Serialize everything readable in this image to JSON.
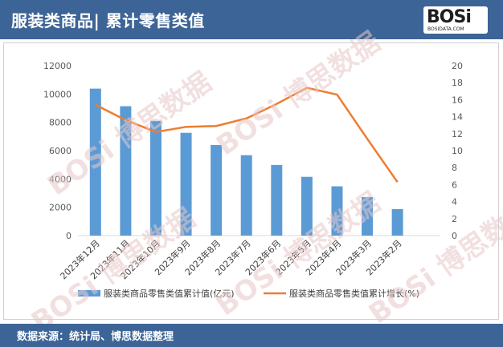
{
  "header": {
    "title": "服装类商品| 累计零售类值"
  },
  "logo": {
    "text": "BOSi",
    "sub": "BOSIDATA.COM"
  },
  "footer": {
    "source": "数据来源：统计局、博思数据整理"
  },
  "watermark": {
    "text": "BOSi 博思数据"
  },
  "colors": {
    "header_bg": "#3d6496",
    "bar": "#5b9bd5",
    "line": "#ed7d31"
  },
  "chart_data": {
    "type": "bar+line",
    "categories": [
      "2023年12月",
      "2023年11月",
      "2023年10月",
      "2023年9月",
      "2023年8月",
      "2023年7月",
      "2023年6月",
      "2023年5月",
      "2023年4月",
      "2023年3月",
      "2023年2月"
    ],
    "series": [
      {
        "name": "服装类商品零售类值累计值(亿元)",
        "type": "bar",
        "axis": "left",
        "values": [
          10380,
          9140,
          8110,
          7260,
          6400,
          5680,
          4990,
          4150,
          3480,
          2720,
          1870
        ]
      },
      {
        "name": "服装类商品零售类值累计增长(%)",
        "type": "line",
        "axis": "right",
        "values": [
          15.4,
          13.6,
          12.2,
          12.8,
          12.9,
          13.8,
          15.5,
          17.4,
          16.6,
          11.4,
          6.3
        ]
      }
    ],
    "y_left": {
      "min": 0,
      "max": 12000,
      "ticks": [
        0,
        2000,
        4000,
        6000,
        8000,
        10000,
        12000
      ]
    },
    "y_right": {
      "min": 0,
      "max": 20,
      "ticks": [
        0,
        2,
        4,
        6,
        8,
        10,
        12,
        14,
        16,
        18,
        20
      ]
    },
    "grid": false,
    "legend_position": "bottom"
  }
}
